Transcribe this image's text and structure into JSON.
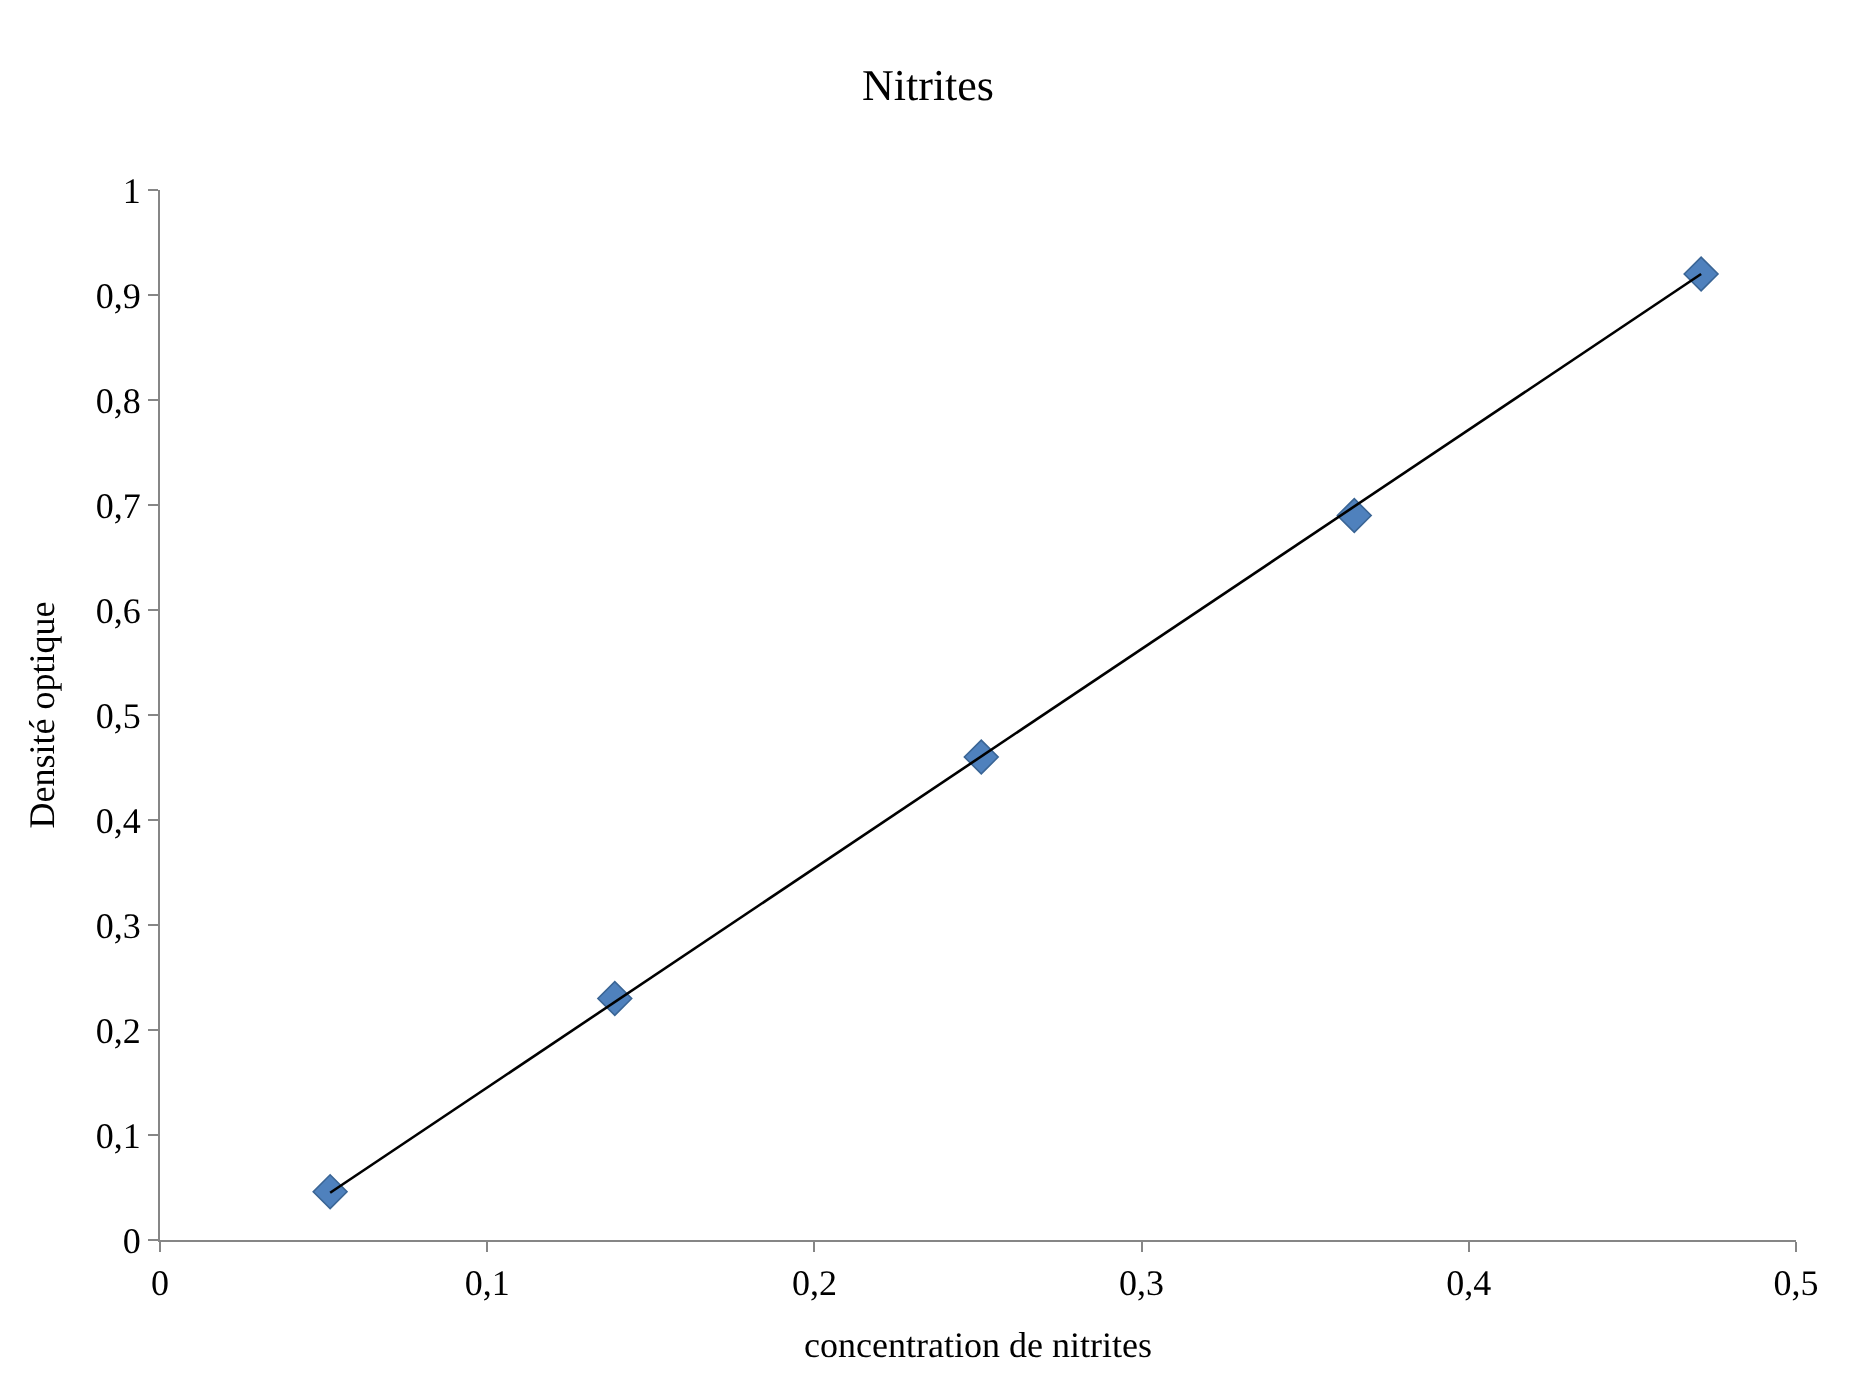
{
  "chart_data": {
    "type": "scatter",
    "title": "Nitrites",
    "xlabel": "concentration de nitrites",
    "ylabel": "Densité optique",
    "x": [
      0.052,
      0.139,
      0.251,
      0.365,
      0.471
    ],
    "series": [
      {
        "color": "#4f81bd",
        "values": [
          0.046,
          0.23,
          0.46,
          0.69,
          0.92
        ],
        "marker": "diamond"
      },
      {
        "type": "line",
        "color": "#000000",
        "x": [
          0.052,
          0.471
        ],
        "values": [
          0.045,
          0.92
        ],
        "marker": "none",
        "line_style": "solid"
      }
    ],
    "xlim": [
      0,
      0.5
    ],
    "xticks": [
      {
        "value": 0,
        "label": "0"
      },
      {
        "value": 0.1,
        "label": "0,1"
      },
      {
        "value": 0.2,
        "label": "0,2"
      },
      {
        "value": 0.3,
        "label": "0,3"
      },
      {
        "value": 0.4,
        "label": "0,4"
      },
      {
        "value": 0.5,
        "label": "0,5"
      }
    ],
    "ylim": [
      0,
      1
    ],
    "yticks": [
      {
        "value": 0,
        "label": "0"
      },
      {
        "value": 0.1,
        "label": "0,1"
      },
      {
        "value": 0.2,
        "label": "0,2"
      },
      {
        "value": 0.3,
        "label": "0,3"
      },
      {
        "value": 0.4,
        "label": "0,4"
      },
      {
        "value": 0.5,
        "label": "0,5"
      },
      {
        "value": 0.6,
        "label": "0,6"
      },
      {
        "value": 0.7,
        "label": "0,7"
      },
      {
        "value": 0.8,
        "label": "0,8"
      },
      {
        "value": 0.9,
        "label": "0,9"
      },
      {
        "value": 1,
        "label": "1"
      }
    ],
    "grid": false
  }
}
